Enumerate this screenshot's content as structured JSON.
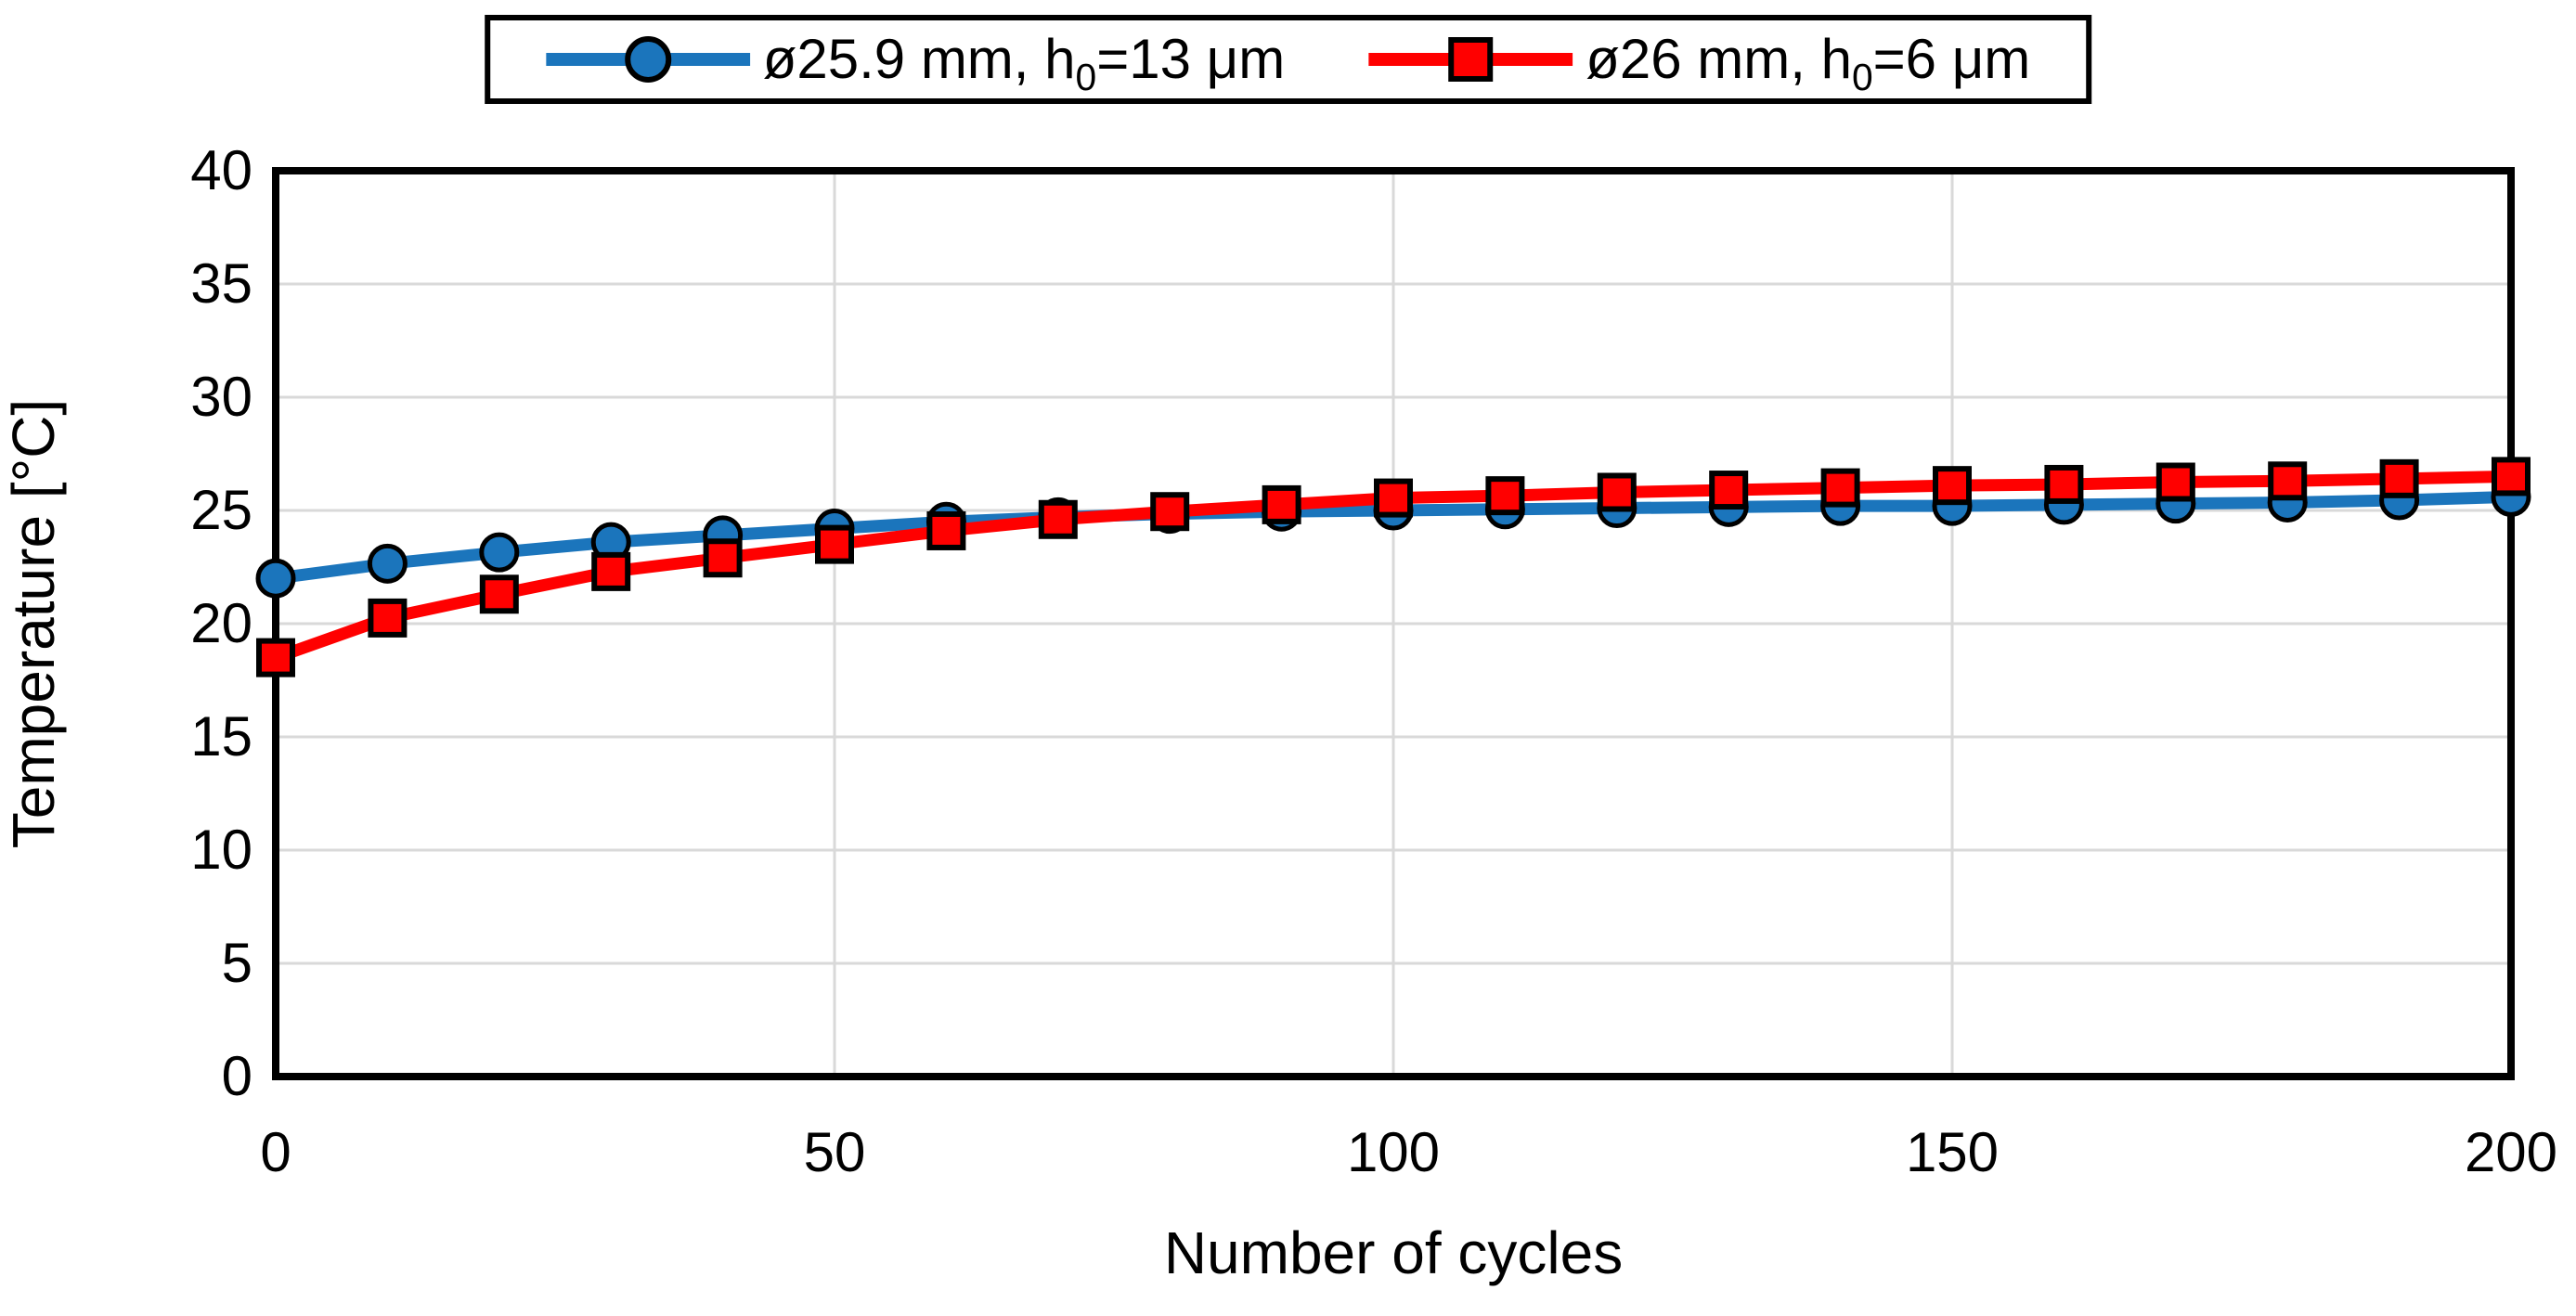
{
  "colors": {
    "series_blue": "#1b75bc",
    "series_red": "#ff0000",
    "grid": "#d9d9d9",
    "axis_frame": "#000000",
    "background": "#ffffff",
    "text": "#000000"
  },
  "legend": {
    "items": [
      {
        "id": "blue",
        "marker": "circle",
        "color": "#1b75bc",
        "label_prefix": "ø25.9 mm, h",
        "label_sub": "0",
        "label_suffix": "=13 μm"
      },
      {
        "id": "red",
        "marker": "square",
        "color": "#ff0000",
        "label_prefix": "ø26 mm, h",
        "label_sub": "0",
        "label_suffix": "=6 μm"
      }
    ]
  },
  "chart_data": {
    "type": "line",
    "title": "",
    "xlabel": "Number of cycles",
    "ylabel": "Temperature [°C]",
    "xlim": [
      0,
      200
    ],
    "ylim": [
      0,
      40
    ],
    "x_ticks": [
      0,
      50,
      100,
      150,
      200
    ],
    "y_ticks": [
      0,
      5,
      10,
      15,
      20,
      25,
      30,
      35,
      40
    ],
    "grid": {
      "horizontal": true,
      "vertical": true,
      "color": "#d9d9d9"
    },
    "legend_position": "top-center",
    "x": [
      0,
      10,
      20,
      30,
      40,
      50,
      60,
      70,
      80,
      90,
      100,
      110,
      120,
      130,
      140,
      150,
      160,
      170,
      180,
      190,
      200
    ],
    "series": [
      {
        "id": "blue",
        "name": "ø25.9 mm, h0=13 μm",
        "marker": "circle",
        "color": "#1b75bc",
        "values": [
          22.0,
          22.65,
          23.15,
          23.6,
          23.9,
          24.2,
          24.5,
          24.7,
          24.85,
          24.95,
          25.0,
          25.05,
          25.1,
          25.15,
          25.2,
          25.2,
          25.25,
          25.3,
          25.35,
          25.45,
          25.6
        ]
      },
      {
        "id": "red",
        "name": "ø26 mm, h0=6 μm",
        "marker": "square",
        "color": "#ff0000",
        "values": [
          18.5,
          20.25,
          21.3,
          22.3,
          22.9,
          23.5,
          24.1,
          24.6,
          24.95,
          25.25,
          25.55,
          25.65,
          25.8,
          25.9,
          26.0,
          26.1,
          26.15,
          26.25,
          26.3,
          26.4,
          26.5
        ]
      }
    ]
  }
}
